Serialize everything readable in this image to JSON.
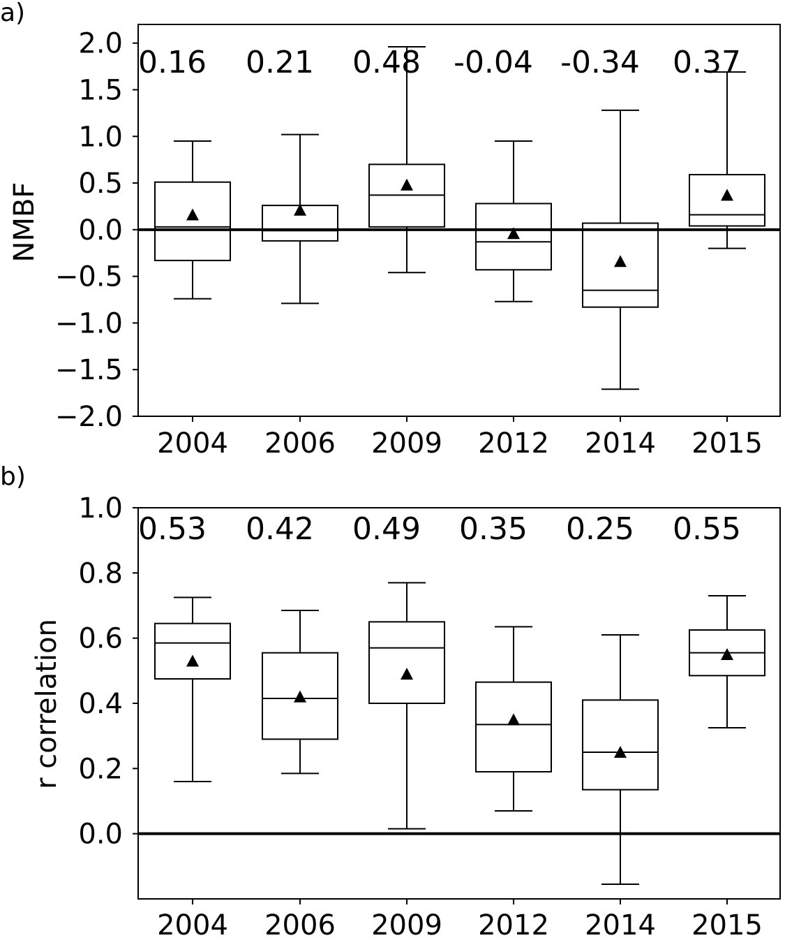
{
  "panels": [
    {
      "label": "a)",
      "ylabel": "NMBF",
      "chart_data": {
        "type": "box",
        "categories": [
          "2004",
          "2006",
          "2009",
          "2012",
          "2014",
          "2015"
        ],
        "ylim": [
          -2.0,
          2.2
        ],
        "yticks": [
          -2.0,
          -1.5,
          -1.0,
          -0.5,
          0.0,
          0.5,
          1.0,
          1.5,
          2.0
        ],
        "ytick_labels": [
          "−2.0",
          "−1.5",
          "−1.0",
          "−0.5",
          "0.0",
          "0.5",
          "1.0",
          "1.5",
          "2.0"
        ],
        "reference_line": 0.0,
        "boxes": [
          {
            "whisker_low": -0.74,
            "q1": -0.33,
            "median": 0.03,
            "q3": 0.51,
            "whisker_high": 0.95,
            "mean": 0.16
          },
          {
            "whisker_low": -0.79,
            "q1": -0.12,
            "median": -0.01,
            "q3": 0.26,
            "whisker_high": 1.02,
            "mean": 0.21
          },
          {
            "whisker_low": -0.46,
            "q1": 0.03,
            "median": 0.37,
            "q3": 0.7,
            "whisker_high": 1.96,
            "mean": 0.48
          },
          {
            "whisker_low": -0.77,
            "q1": -0.43,
            "median": -0.13,
            "q3": 0.28,
            "whisker_high": 0.95,
            "mean": -0.04
          },
          {
            "whisker_low": -1.71,
            "q1": -0.83,
            "median": -0.65,
            "q3": 0.07,
            "whisker_high": 1.28,
            "mean": -0.34
          },
          {
            "whisker_low": -0.2,
            "q1": 0.04,
            "median": 0.16,
            "q3": 0.59,
            "whisker_high": 1.69,
            "mean": 0.37
          }
        ],
        "annotations": [
          "0.16",
          "0.21",
          "0.48",
          "-0.04",
          "-0.34",
          "0.37"
        ]
      }
    },
    {
      "label": "b)",
      "ylabel": "r correlation",
      "chart_data": {
        "type": "box",
        "categories": [
          "2004",
          "2006",
          "2009",
          "2012",
          "2014",
          "2015"
        ],
        "ylim": [
          -0.2,
          1.0
        ],
        "yticks": [
          0.0,
          0.2,
          0.4,
          0.6,
          0.8,
          1.0
        ],
        "ytick_labels": [
          "0.0",
          "0.2",
          "0.4",
          "0.6",
          "0.8",
          "1.0"
        ],
        "reference_line": 0.0,
        "boxes": [
          {
            "whisker_low": 0.16,
            "q1": 0.475,
            "median": 0.585,
            "q3": 0.645,
            "whisker_high": 0.725,
            "mean": 0.53
          },
          {
            "whisker_low": 0.185,
            "q1": 0.29,
            "median": 0.415,
            "q3": 0.555,
            "whisker_high": 0.685,
            "mean": 0.42
          },
          {
            "whisker_low": 0.015,
            "q1": 0.4,
            "median": 0.57,
            "q3": 0.65,
            "whisker_high": 0.77,
            "mean": 0.49
          },
          {
            "whisker_low": 0.07,
            "q1": 0.19,
            "median": 0.335,
            "q3": 0.465,
            "whisker_high": 0.635,
            "mean": 0.35
          },
          {
            "whisker_low": -0.155,
            "q1": 0.135,
            "median": 0.25,
            "q3": 0.41,
            "whisker_high": 0.61,
            "mean": 0.25
          },
          {
            "whisker_low": 0.325,
            "q1": 0.485,
            "median": 0.555,
            "q3": 0.625,
            "whisker_high": 0.73,
            "mean": 0.55
          }
        ],
        "annotations": [
          "0.53",
          "0.42",
          "0.49",
          "0.35",
          "0.25",
          "0.55"
        ]
      }
    }
  ]
}
